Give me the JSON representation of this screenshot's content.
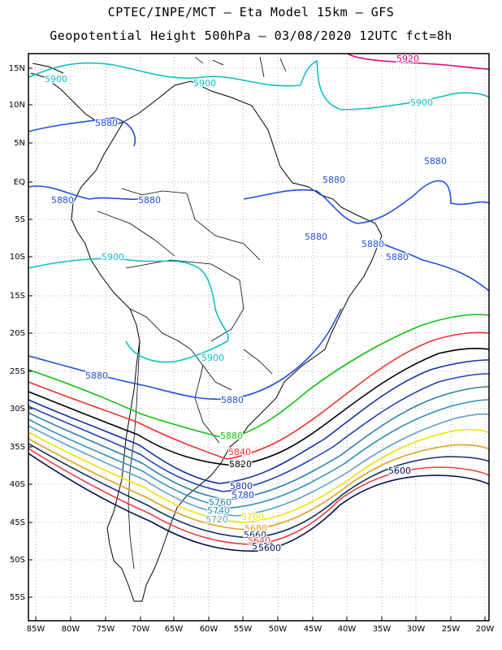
{
  "header": {
    "line1": "CPTEC/INPE/MCT –  Eta Model 15km – GFS",
    "line2": "Geopotential Height 500hPa – 03/08/2020 12UTC fct=8h"
  },
  "map": {
    "lat_labels": [
      "15N",
      "10N",
      "5N",
      "EQ",
      "5S",
      "10S",
      "15S",
      "20S",
      "25S",
      "30S",
      "35S",
      "40S",
      "45S",
      "50S",
      "55S"
    ],
    "lon_labels": [
      "85W",
      "80W",
      "75W",
      "70W",
      "65W",
      "60W",
      "55W",
      "50W",
      "45W",
      "40W",
      "35W",
      "30W",
      "25W",
      "20W"
    ],
    "grid": "dotted",
    "coastlines": "South America political borders (black)"
  },
  "contours": [
    {
      "value": 5920,
      "color": "#e0007a"
    },
    {
      "value": 5900,
      "color": "#10c0c0"
    },
    {
      "value": 5880,
      "color": "#2050e0"
    },
    {
      "value": 5860,
      "color": "#10c010"
    },
    {
      "value": 5840,
      "color": "#f03030"
    },
    {
      "value": 5820,
      "color": "#000000"
    },
    {
      "value": 5800,
      "color": "#1030a0"
    },
    {
      "value": 5780,
      "color": "#2040c0"
    },
    {
      "value": 5760,
      "color": "#2a80a8"
    },
    {
      "value": 5740,
      "color": "#3090b8"
    },
    {
      "value": 5720,
      "color": "#5fa0c8"
    },
    {
      "value": 5700,
      "color": "#f0e000"
    },
    {
      "value": 5680,
      "color": "#e0a020"
    },
    {
      "value": 5660,
      "color": "#103060"
    },
    {
      "value": 5640,
      "color": "#f04040"
    },
    {
      "value": 5620,
      "color": "#001050"
    },
    {
      "value": 5600,
      "color": "#001050"
    }
  ],
  "contour_labels": [
    "5920",
    "5900",
    "5900",
    "5900",
    "5900",
    "5900",
    "5880",
    "5880",
    "5880",
    "5880",
    "5880",
    "5880",
    "5880",
    "5880",
    "5880",
    "5880",
    "5880",
    "5840",
    "5820",
    "5800",
    "5780",
    "5760",
    "5740",
    "5720",
    "5700",
    "5680",
    "5660",
    "5640",
    "5620",
    "5600",
    "5600"
  ]
}
